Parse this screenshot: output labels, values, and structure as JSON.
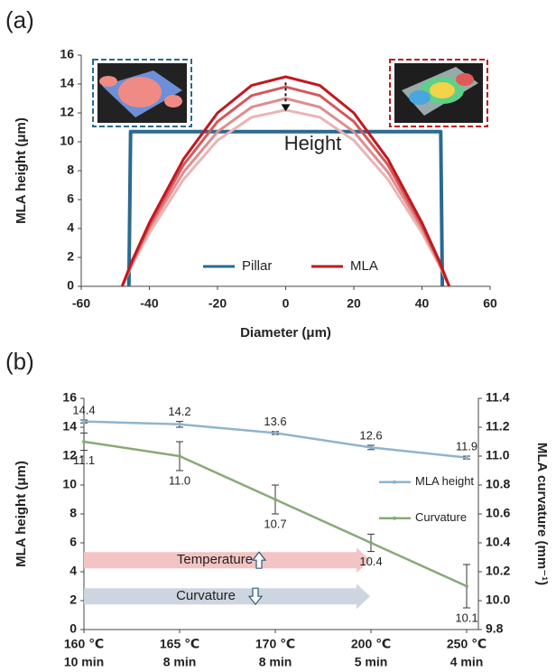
{
  "chart_data": [
    {
      "type": "line",
      "panel_label": "(a)",
      "xlabel": "Diameter (μm)",
      "ylabel": "MLA height (μm)",
      "xlim": [
        -60,
        60
      ],
      "xticks": [
        -60,
        -40,
        -20,
        0,
        20,
        40,
        60
      ],
      "ylim": [
        0,
        16
      ],
      "yticks": [
        0,
        2,
        4,
        6,
        8,
        10,
        12,
        14,
        16
      ],
      "legend": "lower center",
      "annotations": [
        "Height"
      ],
      "series": [
        {
          "name": "Pillar",
          "color": "#2a6a8f",
          "x": [
            -46,
            -45.5,
            45.5,
            46
          ],
          "values": [
            0,
            10.7,
            10.7,
            0
          ]
        },
        {
          "name": "MLA",
          "color": "#c0191f",
          "x": [
            -48,
            -45,
            -40,
            -30,
            -20,
            -10,
            0,
            10,
            20,
            30,
            40,
            45,
            48
          ],
          "curves": [
            {
              "color": "#eab4b5",
              "values": [
                0,
                1.5,
                3.7,
                7.4,
                10.1,
                11.7,
                12.2,
                11.7,
                10.1,
                7.4,
                3.7,
                1.5,
                0
              ]
            },
            {
              "color": "#e08c8e",
              "values": [
                0,
                1.6,
                4.0,
                7.9,
                10.7,
                12.4,
                13.0,
                12.4,
                10.7,
                7.9,
                4.0,
                1.6,
                0
              ]
            },
            {
              "color": "#d6585c",
              "values": [
                0,
                1.7,
                4.2,
                8.4,
                11.4,
                13.2,
                13.8,
                13.2,
                11.4,
                8.4,
                4.2,
                1.7,
                0
              ]
            },
            {
              "color": "#c0191f",
              "values": [
                0,
                1.8,
                4.4,
                8.8,
                12.0,
                13.9,
                14.5,
                13.9,
                12.0,
                8.8,
                4.4,
                1.8,
                0
              ]
            }
          ]
        }
      ]
    },
    {
      "type": "line",
      "panel_label": "(b)",
      "ylabel": "MLA height (μm)",
      "y2label": "MLA curvature (mm⁻¹)",
      "categories": [
        [
          "160 ℃",
          "10 min"
        ],
        [
          "165 ℃",
          "8 min"
        ],
        [
          "170 ℃",
          "8 min"
        ],
        [
          "200 ℃",
          "5 min"
        ],
        [
          "250 ℃",
          "4 min"
        ]
      ],
      "ylim": [
        0,
        16
      ],
      "yticks": [
        0,
        2,
        4,
        6,
        8,
        10,
        12,
        14,
        16
      ],
      "y2lim": [
        9.8,
        11.4
      ],
      "y2ticks": [
        9.8,
        {
          "value": 10,
          "label": "10.0"
        },
        10.2,
        10.4,
        10.6,
        10.8,
        {
          "value": 11,
          "label": "11.0"
        },
        11.2,
        11.4
      ],
      "legend": "center right",
      "annotations": [
        "Temperature",
        "Curvature"
      ],
      "series": [
        {
          "name": "MLA height",
          "color": "#8fb4cf",
          "axis": "y",
          "values": [
            14.4,
            14.2,
            13.6,
            12.6,
            11.9
          ],
          "errors": [
            0.1,
            0.2,
            0.1,
            0.15,
            0.1
          ],
          "value_labels": [
            "14.4",
            "14.2",
            "13.6",
            "12.6",
            "11.9"
          ]
        },
        {
          "name": "Curvature",
          "color": "#8aa87a",
          "axis": "y2",
          "values": [
            11.1,
            11.0,
            10.7,
            10.4,
            10.1
          ],
          "errors": [
            0.06,
            0.1,
            0.1,
            0.06,
            0.15
          ],
          "value_labels": [
            "11.1",
            "11.0",
            "10.7",
            "10.4",
            "10.1"
          ]
        }
      ]
    }
  ]
}
